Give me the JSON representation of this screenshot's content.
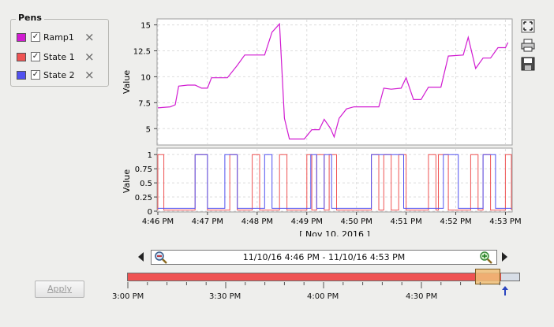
{
  "pens": {
    "title": "Pens",
    "items": [
      {
        "label": "Ramp1",
        "color": "#d11bd1",
        "checked": true
      },
      {
        "label": "State 1",
        "color": "#ef5353",
        "checked": true
      },
      {
        "label": "State 2",
        "color": "#5252f0",
        "checked": true
      }
    ]
  },
  "chart_data": [
    {
      "type": "line",
      "ylabel": "Value",
      "ylim": [
        3.5,
        15.5
      ],
      "yticks": [
        "15",
        "12.5",
        "10",
        "7.5",
        "5"
      ],
      "grid": true,
      "series": [
        {
          "name": "Ramp1",
          "color": "#d11bd1",
          "points": [
            [
              0,
              7.0
            ],
            [
              0.25,
              7.1
            ],
            [
              0.35,
              7.3
            ],
            [
              0.42,
              9.1
            ],
            [
              0.6,
              9.2
            ],
            [
              0.75,
              9.2
            ],
            [
              0.88,
              8.9
            ],
            [
              1.0,
              8.9
            ],
            [
              1.08,
              9.9
            ],
            [
              1.4,
              9.9
            ],
            [
              1.6,
              11.1
            ],
            [
              1.75,
              12.1
            ],
            [
              2.15,
              12.1
            ],
            [
              2.3,
              14.3
            ],
            [
              2.45,
              15.1
            ],
            [
              2.55,
              6.0
            ],
            [
              2.65,
              4.0
            ],
            [
              2.95,
              4.0
            ],
            [
              3.1,
              4.9
            ],
            [
              3.25,
              4.9
            ],
            [
              3.35,
              5.9
            ],
            [
              3.48,
              5.0
            ],
            [
              3.55,
              4.2
            ],
            [
              3.65,
              6.0
            ],
            [
              3.8,
              6.9
            ],
            [
              3.95,
              7.1
            ],
            [
              4.3,
              7.1
            ],
            [
              4.45,
              7.1
            ],
            [
              4.55,
              8.9
            ],
            [
              4.7,
              8.8
            ],
            [
              4.9,
              8.9
            ],
            [
              5.0,
              9.9
            ],
            [
              5.15,
              7.8
            ],
            [
              5.3,
              7.8
            ],
            [
              5.45,
              9.0
            ],
            [
              5.7,
              9.0
            ],
            [
              5.85,
              12.0
            ],
            [
              6.15,
              12.1
            ],
            [
              6.25,
              13.8
            ],
            [
              6.4,
              10.8
            ],
            [
              6.55,
              11.8
            ],
            [
              6.7,
              11.8
            ],
            [
              6.85,
              12.8
            ],
            [
              7.0,
              12.8
            ],
            [
              7.05,
              13.3
            ]
          ]
        }
      ]
    },
    {
      "type": "line",
      "ylabel": "Value",
      "ylim": [
        0,
        1.1
      ],
      "yticks": [
        "1",
        "0.75",
        "0.5",
        "0.25",
        "0"
      ],
      "xticks": [
        "4:46 PM",
        "4:47 PM",
        "4:48 PM",
        "4:49 PM",
        "4:50 PM",
        "4:51 PM",
        "4:52 PM",
        "4:53 PM"
      ],
      "xlabel": "[ Nov 10, 2016 ]",
      "grid": true,
      "series": [
        {
          "name": "State 1",
          "color": "#ef5353",
          "intervals": [
            [
              0.0,
              0.12
            ],
            [
              0.75,
              1.0
            ],
            [
              1.45,
              1.6
            ],
            [
              1.9,
              2.05
            ],
            [
              2.45,
              2.6
            ],
            [
              3.0,
              3.1
            ],
            [
              3.2,
              3.35
            ],
            [
              3.45,
              3.6
            ],
            [
              4.3,
              4.45
            ],
            [
              4.55,
              4.7
            ],
            [
              4.85,
              5.0
            ],
            [
              5.45,
              5.6
            ],
            [
              5.65,
              5.85
            ],
            [
              6.3,
              6.45
            ],
            [
              6.55,
              6.7
            ],
            [
              7.0,
              7.12
            ]
          ]
        },
        {
          "name": "State 2",
          "color": "#5252f0",
          "intervals": [
            [
              0.75,
              1.0
            ],
            [
              1.35,
              1.6
            ],
            [
              2.15,
              2.3
            ],
            [
              3.08,
              3.2
            ],
            [
              3.35,
              3.5
            ],
            [
              4.3,
              4.95
            ],
            [
              5.75,
              6.05
            ],
            [
              6.55,
              6.8
            ]
          ]
        }
      ]
    }
  ],
  "timeline": {
    "range_text": "11/10/16 4:46 PM - 11/10/16 4:53 PM",
    "labels": [
      "3:00 PM",
      "3:30 PM",
      "4:00 PM",
      "4:30 PM"
    ],
    "fill_color": "#ef5353"
  },
  "apply_label": "Apply",
  "icons": {
    "zoom_out": "zoom-out-icon",
    "zoom_in": "zoom-in-icon",
    "fullscreen": "fullscreen-icon",
    "print": "print-icon",
    "save": "save-icon"
  }
}
